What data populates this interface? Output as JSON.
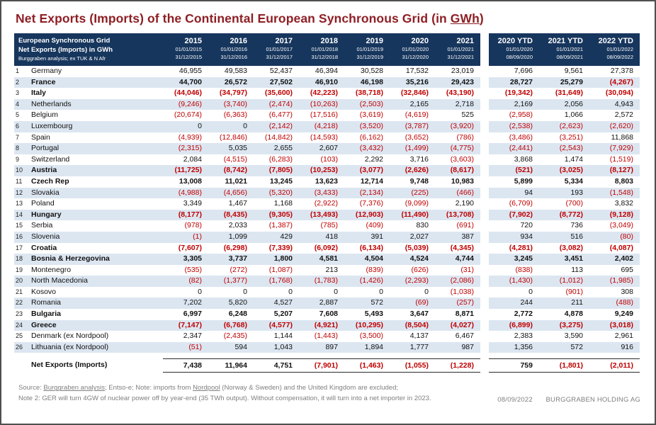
{
  "colors": {
    "header_bg": "#17365D",
    "row_stripe": "#DCE6F1",
    "negative_value": "#C00000",
    "title_text": "#8E1F24",
    "footer_text": "#7F7F7F"
  },
  "chart_data": {
    "type": "table",
    "title": "Net Exports (Imports) of the Continental European Synchronous Grid (in GWh)",
    "title_prefix": "Net Exports (Imports) of the Continental European Synchronous Grid (in ",
    "title_underlined": "GWh",
    "title_suffix": ")",
    "unit": "GWh",
    "corner": {
      "line1": "European Synchronous Grid",
      "line2": "Net Exports (Imports) in GWh",
      "line3": "Burggraben analysis; ex TUK & N Afr"
    },
    "columns": [
      {
        "label": "2015",
        "from": "01/01/2015",
        "to": "31/12/2015"
      },
      {
        "label": "2016",
        "from": "01/01/2016",
        "to": "31/12/2016"
      },
      {
        "label": "2017",
        "from": "01/01/2017",
        "to": "31/12/2017"
      },
      {
        "label": "2018",
        "from": "01/01/2018",
        "to": "31/12/2018"
      },
      {
        "label": "2019",
        "from": "01/01/2019",
        "to": "31/12/2019"
      },
      {
        "label": "2020",
        "from": "01/01/2020",
        "to": "31/12/2020"
      },
      {
        "label": "2021",
        "from": "01/01/2021",
        "to": "31/12/2021"
      }
    ],
    "ytd_columns": [
      {
        "label": "2020 YTD",
        "from": "01/01/2020",
        "to": "08/09/2020"
      },
      {
        "label": "2021 YTD",
        "from": "01/01/2021",
        "to": "08/09/2021"
      },
      {
        "label": "2022 YTD",
        "from": "01/01/2022",
        "to": "08/09/2022"
      }
    ],
    "rows": [
      {
        "num": 1,
        "name": "Germany",
        "bold": false,
        "values": [
          "46,955",
          "49,583",
          "52,437",
          "46,394",
          "30,528",
          "17,532",
          "23,019"
        ],
        "ytd": [
          "7,696",
          "9,561",
          "27,378"
        ]
      },
      {
        "num": 2,
        "name": "France",
        "bold": true,
        "values": [
          "44,700",
          "26,572",
          "27,502",
          "46,910",
          "46,198",
          "35,216",
          "29,423"
        ],
        "ytd": [
          "28,727",
          "25,279",
          "(4,267)"
        ]
      },
      {
        "num": 3,
        "name": "Italy",
        "bold": true,
        "values": [
          "(44,046)",
          "(34,797)",
          "(35,600)",
          "(42,223)",
          "(38,718)",
          "(32,846)",
          "(43,190)"
        ],
        "ytd": [
          "(19,342)",
          "(31,649)",
          "(30,094)"
        ]
      },
      {
        "num": 4,
        "name": "Netherlands",
        "bold": false,
        "values": [
          "(9,246)",
          "(3,740)",
          "(2,474)",
          "(10,263)",
          "(2,503)",
          "2,165",
          "2,718"
        ],
        "ytd": [
          "2,169",
          "2,056",
          "4,943"
        ]
      },
      {
        "num": 5,
        "name": "Belgium",
        "bold": false,
        "values": [
          "(20,674)",
          "(6,363)",
          "(6,477)",
          "(17,516)",
          "(3,619)",
          "(4,619)",
          "525"
        ],
        "ytd": [
          "(2,958)",
          "1,066",
          "2,572"
        ]
      },
      {
        "num": 6,
        "name": "Luxembourg",
        "bold": false,
        "values": [
          "0",
          "0",
          "(2,142)",
          "(4,218)",
          "(3,520)",
          "(3,787)",
          "(3,920)"
        ],
        "ytd": [
          "(2,538)",
          "(2,623)",
          "(2,620)"
        ]
      },
      {
        "num": 7,
        "name": "Spain",
        "bold": false,
        "values": [
          "(4,939)",
          "(12,846)",
          "(14,842)",
          "(14,593)",
          "(6,162)",
          "(3,652)",
          "(786)"
        ],
        "ytd": [
          "(3,486)",
          "(3,251)",
          "11,868"
        ]
      },
      {
        "num": 8,
        "name": "Portugal",
        "bold": false,
        "values": [
          "(2,315)",
          "5,035",
          "2,655",
          "2,607",
          "(3,432)",
          "(1,499)",
          "(4,775)"
        ],
        "ytd": [
          "(2,441)",
          "(2,543)",
          "(7,929)"
        ]
      },
      {
        "num": 9,
        "name": "Switzerland",
        "bold": false,
        "values": [
          "2,084",
          "(4,515)",
          "(6,283)",
          "(103)",
          "2,292",
          "3,716",
          "(3,603)"
        ],
        "ytd": [
          "3,868",
          "1,474",
          "(1,519)"
        ]
      },
      {
        "num": 10,
        "name": "Austria",
        "bold": true,
        "values": [
          "(11,725)",
          "(8,742)",
          "(7,805)",
          "(10,253)",
          "(3,077)",
          "(2,626)",
          "(8,617)"
        ],
        "ytd": [
          "(521)",
          "(3,025)",
          "(8,127)"
        ]
      },
      {
        "num": 11,
        "name": "Czech Rep",
        "bold": true,
        "values": [
          "13,008",
          "11,021",
          "13,245",
          "13,623",
          "12,714",
          "9,748",
          "10,983"
        ],
        "ytd": [
          "5,899",
          "5,334",
          "8,803"
        ]
      },
      {
        "num": 12,
        "name": "Slovakia",
        "bold": false,
        "values": [
          "(4,988)",
          "(4,656)",
          "(5,320)",
          "(3,433)",
          "(2,134)",
          "(225)",
          "(466)"
        ],
        "ytd": [
          "94",
          "193",
          "(1,548)"
        ]
      },
      {
        "num": 13,
        "name": "Poland",
        "bold": false,
        "values": [
          "3,349",
          "1,467",
          "1,168",
          "(2,922)",
          "(7,376)",
          "(9,099)",
          "2,190"
        ],
        "ytd": [
          "(6,709)",
          "(700)",
          "3,832"
        ]
      },
      {
        "num": 14,
        "name": "Hungary",
        "bold": true,
        "values": [
          "(8,177)",
          "(8,435)",
          "(9,305)",
          "(13,493)",
          "(12,903)",
          "(11,490)",
          "(13,708)"
        ],
        "ytd": [
          "(7,902)",
          "(8,772)",
          "(9,128)"
        ]
      },
      {
        "num": 15,
        "name": "Serbia",
        "bold": false,
        "values": [
          "(978)",
          "2,033",
          "(1,387)",
          "(785)",
          "(409)",
          "830",
          "(691)"
        ],
        "ytd": [
          "720",
          "736",
          "(3,049)"
        ]
      },
      {
        "num": 16,
        "name": "Slovenia",
        "bold": false,
        "values": [
          "(1)",
          "1,099",
          "429",
          "418",
          "391",
          "2,027",
          "387"
        ],
        "ytd": [
          "934",
          "516",
          "(80)"
        ]
      },
      {
        "num": 17,
        "name": "Croatia",
        "bold": true,
        "values": [
          "(7,607)",
          "(6,298)",
          "(7,339)",
          "(6,092)",
          "(6,134)",
          "(5,039)",
          "(4,345)"
        ],
        "ytd": [
          "(4,281)",
          "(3,082)",
          "(4,087)"
        ]
      },
      {
        "num": 18,
        "name": "Bosnia & Herzegovina",
        "bold": true,
        "values": [
          "3,305",
          "3,737",
          "1,800",
          "4,581",
          "4,504",
          "4,524",
          "4,744"
        ],
        "ytd": [
          "3,245",
          "3,451",
          "2,402"
        ]
      },
      {
        "num": 19,
        "name": "Montenegro",
        "bold": false,
        "values": [
          "(535)",
          "(272)",
          "(1,087)",
          "213",
          "(839)",
          "(626)",
          "(31)"
        ],
        "ytd": [
          "(838)",
          "113",
          "695"
        ]
      },
      {
        "num": 20,
        "name": "North Macedonia",
        "bold": false,
        "values": [
          "(82)",
          "(1,377)",
          "(1,768)",
          "(1,783)",
          "(1,426)",
          "(2,293)",
          "(2,086)"
        ],
        "ytd": [
          "(1,430)",
          "(1,012)",
          "(1,985)"
        ]
      },
      {
        "num": 21,
        "name": "Kosovo",
        "bold": false,
        "values": [
          "0",
          "0",
          "0",
          "0",
          "0",
          "0",
          "(1,038)"
        ],
        "ytd": [
          "0",
          "(901)",
          "308"
        ]
      },
      {
        "num": 22,
        "name": "Romania",
        "bold": false,
        "values": [
          "7,202",
          "5,820",
          "4,527",
          "2,887",
          "572",
          "(69)",
          "(257)"
        ],
        "ytd": [
          "244",
          "211",
          "(488)"
        ]
      },
      {
        "num": 23,
        "name": "Bulgaria",
        "bold": true,
        "values": [
          "6,997",
          "6,248",
          "5,207",
          "7,608",
          "5,493",
          "3,647",
          "8,871"
        ],
        "ytd": [
          "2,772",
          "4,878",
          "9,249"
        ]
      },
      {
        "num": 24,
        "name": "Greece",
        "bold": true,
        "values": [
          "(7,147)",
          "(6,768)",
          "(4,577)",
          "(4,921)",
          "(10,295)",
          "(8,504)",
          "(4,027)"
        ],
        "ytd": [
          "(6,899)",
          "(3,275)",
          "(3,018)"
        ]
      },
      {
        "num": 25,
        "name": "Denmark (ex Nordpool)",
        "bold": false,
        "values": [
          "2,347",
          "(2,435)",
          "1,144",
          "(1,443)",
          "(3,500)",
          "4,137",
          "6,467"
        ],
        "ytd": [
          "2,383",
          "3,590",
          "2,961"
        ]
      },
      {
        "num": 26,
        "name": "Lithuania (ex Nordpool)",
        "bold": false,
        "values": [
          "(51)",
          "594",
          "1,043",
          "897",
          "1,894",
          "1,777",
          "987"
        ],
        "ytd": [
          "1,356",
          "572",
          "916"
        ]
      }
    ],
    "total": {
      "label": "Net Exports (Imports)",
      "values": [
        "7,438",
        "11,964",
        "4,751",
        "(7,901)",
        "(1,463)",
        "(1,055)",
        "(1,228)"
      ],
      "ytd": [
        "759",
        "(1,801)",
        "(2,011)"
      ]
    }
  },
  "footer": {
    "line1_segments": [
      {
        "text": "Source: ",
        "underline": false
      },
      {
        "text": "Burggraben analysis",
        "underline": true
      },
      {
        "text": "; Entso-e; Note: imports from ",
        "underline": false
      },
      {
        "text": "Nordpool",
        "underline": true
      },
      {
        "text": " (Norway & Sweden) and the United Kingdom are excluded;",
        "underline": false
      }
    ],
    "line2": "Note 2: GER will turn 4GW of nuclear power off by year-end (35 TWh output). Without compensation, it will turn into a net importer in 2023.",
    "date": "08/09/2022",
    "company": "BURGGRABEN HOLDING AG"
  }
}
